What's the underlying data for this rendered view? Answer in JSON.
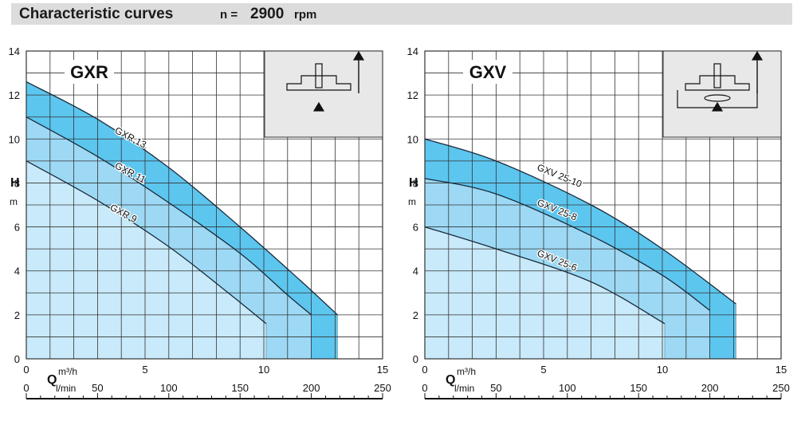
{
  "header": {
    "title": "Characteristic curves",
    "n_label": "n =",
    "speed_value": "2900",
    "speed_unit": "rpm"
  },
  "colors": {
    "band_outer": "#5cc6ef",
    "band_mid": "#9dd9f4",
    "band_inner": "#c8eafa",
    "curve": "#1a2a3a",
    "grid": "#333333",
    "header_bg": "#dcdcdc"
  },
  "chart_data": [
    {
      "type": "line",
      "title": "GXR",
      "ylabel": "H",
      "yunit": "m",
      "xlabel": "Q",
      "xunit_primary": "m³/h",
      "xunit_secondary": "l/min",
      "xlim": [
        0,
        15
      ],
      "ylim": [
        0,
        14
      ],
      "x_ticks": [
        0,
        5,
        10,
        15
      ],
      "y_ticks": [
        0,
        2,
        4,
        6,
        8,
        10,
        12,
        14
      ],
      "secondary_ticks": [
        0,
        50,
        100,
        150,
        200,
        250
      ],
      "grid": true,
      "inset_icon": "impeller-diagram-icon",
      "series": [
        {
          "name": "GXR 13",
          "x": [
            0,
            3,
            6,
            9,
            11.5,
            13.1
          ],
          "y": [
            12.6,
            10.9,
            8.7,
            6.0,
            3.6,
            2.0
          ],
          "end_x": 13.1
        },
        {
          "name": "GXR 11",
          "x": [
            0,
            3,
            6,
            9,
            11,
            12.0
          ],
          "y": [
            11.0,
            9.2,
            7.1,
            4.8,
            2.9,
            2.0
          ],
          "end_x": 12.0
        },
        {
          "name": "GXR 9",
          "x": [
            0,
            3,
            6,
            8.5,
            10.1
          ],
          "y": [
            9.0,
            7.2,
            5.1,
            3.0,
            1.6
          ],
          "end_x": 10.1
        }
      ]
    },
    {
      "type": "line",
      "title": "GXV",
      "ylabel": "H",
      "yunit": "m",
      "xlabel": "Q",
      "xunit_primary": "m³/h",
      "xunit_secondary": "l/min",
      "xlim": [
        0,
        15
      ],
      "ylim": [
        0,
        14
      ],
      "x_ticks": [
        0,
        5,
        10,
        15
      ],
      "y_ticks": [
        0,
        2,
        4,
        6,
        8,
        10,
        12,
        14
      ],
      "secondary_ticks": [
        0,
        50,
        100,
        150,
        200,
        250
      ],
      "grid": true,
      "inset_icon": "impeller-diagram-icon",
      "series": [
        {
          "name": "GXV 25-10",
          "x": [
            0,
            3,
            7,
            10,
            13.1
          ],
          "y": [
            10.0,
            9.0,
            7.0,
            5.0,
            2.5
          ],
          "end_x": 13.1
        },
        {
          "name": "GXV 25-8",
          "x": [
            0,
            3,
            7,
            10,
            12.0
          ],
          "y": [
            8.2,
            7.5,
            5.6,
            3.8,
            2.2
          ],
          "end_x": 12.0
        },
        {
          "name": "GXV 25-6",
          "x": [
            0,
            3,
            7,
            10.1
          ],
          "y": [
            6.0,
            5.0,
            3.5,
            1.6
          ],
          "end_x": 10.1
        }
      ]
    }
  ]
}
